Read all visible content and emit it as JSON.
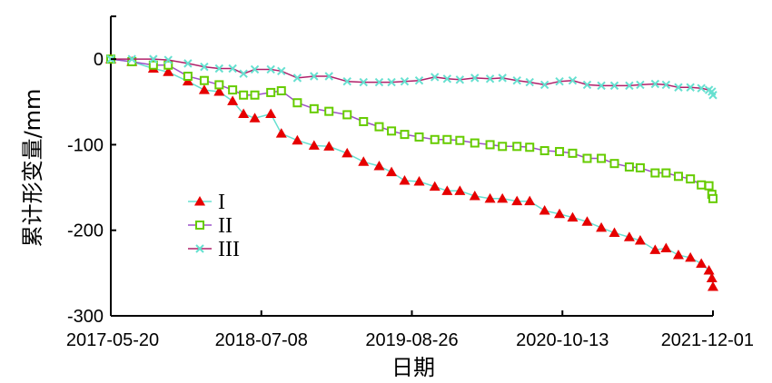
{
  "chart_data": {
    "type": "line",
    "title": "",
    "xlabel": "日期",
    "ylabel": "累计形变量/mm",
    "x_ticks": [
      "2017-05-20",
      "2018-07-08",
      "2019-08-26",
      "2020-10-13",
      "2021-12-01"
    ],
    "x_range": [
      "2017-05-20",
      "2021-12-01"
    ],
    "ylim": [
      -300,
      50
    ],
    "y_ticks": [
      0,
      -100,
      -200,
      -300
    ],
    "grid": false,
    "legend_position": "left-middle",
    "series": [
      {
        "name": "I",
        "marker": "triangle",
        "marker_color": "#e60000",
        "line_color": "#66e0d0",
        "points": [
          [
            "2017-05-20",
            0
          ],
          [
            "2017-07-17",
            -3
          ],
          [
            "2017-09-14",
            -11
          ],
          [
            "2017-10-25",
            -15
          ],
          [
            "2017-12-18",
            -26
          ],
          [
            "2018-02-01",
            -36
          ],
          [
            "2018-03-14",
            -38
          ],
          [
            "2018-04-20",
            -49
          ],
          [
            "2018-05-20",
            -64
          ],
          [
            "2018-06-20",
            -69
          ],
          [
            "2018-08-03",
            -64
          ],
          [
            "2018-09-01",
            -87
          ],
          [
            "2018-10-15",
            -95
          ],
          [
            "2018-11-30",
            -101
          ],
          [
            "2019-01-10",
            -102
          ],
          [
            "2019-03-01",
            -110
          ],
          [
            "2019-04-15",
            -120
          ],
          [
            "2019-05-28",
            -125
          ],
          [
            "2019-07-01",
            -132
          ],
          [
            "2019-08-06",
            -142
          ],
          [
            "2019-09-15",
            -143
          ],
          [
            "2019-10-28",
            -149
          ],
          [
            "2019-12-01",
            -154
          ],
          [
            "2020-01-05",
            -154
          ],
          [
            "2020-02-15",
            -160
          ],
          [
            "2020-03-28",
            -163
          ],
          [
            "2020-05-01",
            -163
          ],
          [
            "2020-06-10",
            -166
          ],
          [
            "2020-07-15",
            -166
          ],
          [
            "2020-08-25",
            -177
          ],
          [
            "2020-10-05",
            -181
          ],
          [
            "2020-11-10",
            -185
          ],
          [
            "2020-12-20",
            -190
          ],
          [
            "2021-01-28",
            -197
          ],
          [
            "2021-03-05",
            -203
          ],
          [
            "2021-04-15",
            -208
          ],
          [
            "2021-05-15",
            -212
          ],
          [
            "2021-06-25",
            -223
          ],
          [
            "2021-07-25",
            -221
          ],
          [
            "2021-08-28",
            -229
          ],
          [
            "2021-09-30",
            -232
          ],
          [
            "2021-10-30",
            -239
          ],
          [
            "2021-11-20",
            -247
          ],
          [
            "2021-11-28",
            -256
          ],
          [
            "2021-12-01",
            -266
          ]
        ]
      },
      {
        "name": "II",
        "marker": "square",
        "marker_color": "#66cc00",
        "line_color": "#9c50c8",
        "points": [
          [
            "2017-05-20",
            0
          ],
          [
            "2017-07-17",
            -3
          ],
          [
            "2017-09-14",
            -7
          ],
          [
            "2017-10-25",
            -7
          ],
          [
            "2017-12-18",
            -20
          ],
          [
            "2018-02-01",
            -25
          ],
          [
            "2018-03-14",
            -30
          ],
          [
            "2018-04-20",
            -36
          ],
          [
            "2018-05-20",
            -42
          ],
          [
            "2018-06-20",
            -42
          ],
          [
            "2018-08-03",
            -39
          ],
          [
            "2018-09-01",
            -37
          ],
          [
            "2018-10-15",
            -51
          ],
          [
            "2018-11-30",
            -58
          ],
          [
            "2019-01-10",
            -61
          ],
          [
            "2019-03-01",
            -65
          ],
          [
            "2019-04-15",
            -73
          ],
          [
            "2019-05-28",
            -79
          ],
          [
            "2019-07-01",
            -84
          ],
          [
            "2019-08-06",
            -88
          ],
          [
            "2019-09-15",
            -91
          ],
          [
            "2019-10-28",
            -94
          ],
          [
            "2019-12-01",
            -94
          ],
          [
            "2020-01-05",
            -95
          ],
          [
            "2020-02-15",
            -98
          ],
          [
            "2020-03-28",
            -100
          ],
          [
            "2020-05-01",
            -102
          ],
          [
            "2020-06-10",
            -102
          ],
          [
            "2020-07-15",
            -103
          ],
          [
            "2020-08-25",
            -107
          ],
          [
            "2020-10-05",
            -108
          ],
          [
            "2020-11-10",
            -110
          ],
          [
            "2020-12-20",
            -116
          ],
          [
            "2021-01-28",
            -116
          ],
          [
            "2021-03-05",
            -122
          ],
          [
            "2021-04-15",
            -126
          ],
          [
            "2021-05-15",
            -127
          ],
          [
            "2021-06-25",
            -133
          ],
          [
            "2021-07-25",
            -133
          ],
          [
            "2021-08-28",
            -137
          ],
          [
            "2021-09-30",
            -140
          ],
          [
            "2021-10-30",
            -147
          ],
          [
            "2021-11-20",
            -148
          ],
          [
            "2021-11-28",
            -158
          ],
          [
            "2021-12-01",
            -163
          ]
        ]
      },
      {
        "name": "III",
        "marker": "x",
        "marker_color": "#66e0d0",
        "line_color": "#b0206a",
        "points": [
          [
            "2017-05-20",
            0
          ],
          [
            "2017-07-17",
            0
          ],
          [
            "2017-09-14",
            0
          ],
          [
            "2017-10-25",
            -1
          ],
          [
            "2017-12-18",
            -5
          ],
          [
            "2018-02-01",
            -9
          ],
          [
            "2018-03-14",
            -11
          ],
          [
            "2018-04-20",
            -11
          ],
          [
            "2018-05-20",
            -17
          ],
          [
            "2018-06-20",
            -12
          ],
          [
            "2018-08-03",
            -12
          ],
          [
            "2018-09-01",
            -14
          ],
          [
            "2018-10-15",
            -22
          ],
          [
            "2018-11-30",
            -20
          ],
          [
            "2019-01-10",
            -20
          ],
          [
            "2019-03-01",
            -26
          ],
          [
            "2019-04-15",
            -27
          ],
          [
            "2019-05-28",
            -27
          ],
          [
            "2019-07-01",
            -27
          ],
          [
            "2019-08-06",
            -26
          ],
          [
            "2019-09-15",
            -25
          ],
          [
            "2019-10-28",
            -21
          ],
          [
            "2019-12-01",
            -23
          ],
          [
            "2020-01-05",
            -24
          ],
          [
            "2020-02-15",
            -22
          ],
          [
            "2020-03-28",
            -23
          ],
          [
            "2020-05-01",
            -22
          ],
          [
            "2020-06-10",
            -25
          ],
          [
            "2020-07-15",
            -27
          ],
          [
            "2020-08-25",
            -30
          ],
          [
            "2020-10-05",
            -26
          ],
          [
            "2020-11-10",
            -25
          ],
          [
            "2020-12-20",
            -30
          ],
          [
            "2021-01-28",
            -31
          ],
          [
            "2021-03-05",
            -31
          ],
          [
            "2021-04-15",
            -31
          ],
          [
            "2021-05-15",
            -30
          ],
          [
            "2021-06-25",
            -29
          ],
          [
            "2021-07-25",
            -30
          ],
          [
            "2021-08-28",
            -33
          ],
          [
            "2021-09-30",
            -33
          ],
          [
            "2021-10-30",
            -34
          ],
          [
            "2021-11-20",
            -36
          ],
          [
            "2021-11-28",
            -38
          ],
          [
            "2021-12-01",
            -42
          ]
        ]
      }
    ]
  }
}
